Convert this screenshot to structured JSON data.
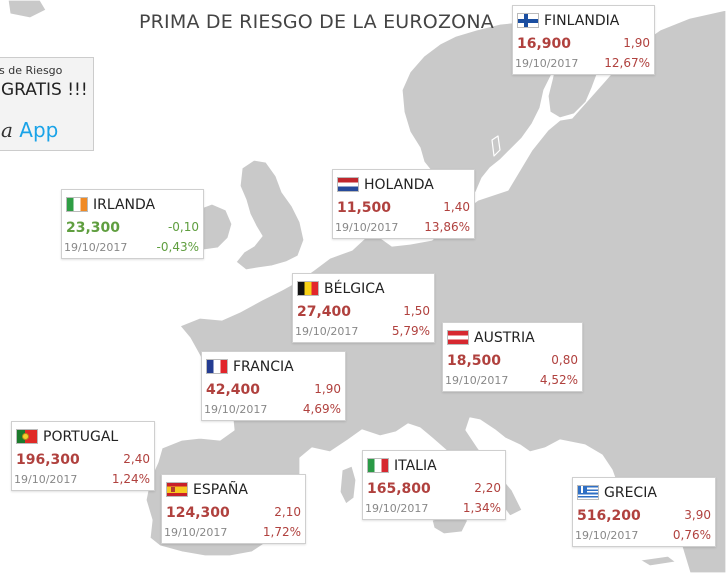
{
  "title": "PRIMA DE RIESGO DE LA EUROZONA",
  "promo": {
    "line1": "s de Riesgo",
    "line2": "GRATIS !!!",
    "line3_a": "a",
    "line3_app": "App"
  },
  "colors": {
    "sea": "#ffffff",
    "land": "#c9c9c9",
    "up": "#b0413e",
    "down": "#5f9e3f"
  },
  "countries": [
    {
      "id": "finlandia",
      "name": "FINLANDIA",
      "flag": "flag-finland-icon",
      "value": "16,900",
      "change": "1,90",
      "date": "19/10/2017",
      "pct": "12,67%",
      "trend": "up"
    },
    {
      "id": "irlanda",
      "name": "IRLANDA",
      "flag": "flag-ireland-icon",
      "value": "23,300",
      "change": "-0,10",
      "date": "19/10/2017",
      "pct": "-0,43%",
      "trend": "down"
    },
    {
      "id": "holanda",
      "name": "HOLANDA",
      "flag": "flag-netherlands-icon",
      "value": "11,500",
      "change": "1,40",
      "date": "19/10/2017",
      "pct": "13,86%",
      "trend": "up"
    },
    {
      "id": "belgica",
      "name": "BÉLGICA",
      "flag": "flag-belgium-icon",
      "value": "27,400",
      "change": "1,50",
      "date": "19/10/2017",
      "pct": "5,79%",
      "trend": "up"
    },
    {
      "id": "austria",
      "name": "AUSTRIA",
      "flag": "flag-austria-icon",
      "value": "18,500",
      "change": "0,80",
      "date": "19/10/2017",
      "pct": "4,52%",
      "trend": "up"
    },
    {
      "id": "francia",
      "name": "FRANCIA",
      "flag": "flag-france-icon",
      "value": "42,400",
      "change": "1,90",
      "date": "19/10/2017",
      "pct": "4,69%",
      "trend": "up"
    },
    {
      "id": "portugal",
      "name": "PORTUGAL",
      "flag": "flag-portugal-icon",
      "value": "196,300",
      "change": "2,40",
      "date": "19/10/2017",
      "pct": "1,24%",
      "trend": "up"
    },
    {
      "id": "espana",
      "name": "ESPAÑA",
      "flag": "flag-spain-icon",
      "value": "124,300",
      "change": "2,10",
      "date": "19/10/2017",
      "pct": "1,72%",
      "trend": "up"
    },
    {
      "id": "italia",
      "name": "ITALIA",
      "flag": "flag-italy-icon",
      "value": "165,800",
      "change": "2,20",
      "date": "19/10/2017",
      "pct": "1,34%",
      "trend": "up"
    },
    {
      "id": "grecia",
      "name": "GRECIA",
      "flag": "flag-greece-icon",
      "value": "516,200",
      "change": "3,90",
      "date": "19/10/2017",
      "pct": "0,76%",
      "trend": "up"
    }
  ]
}
